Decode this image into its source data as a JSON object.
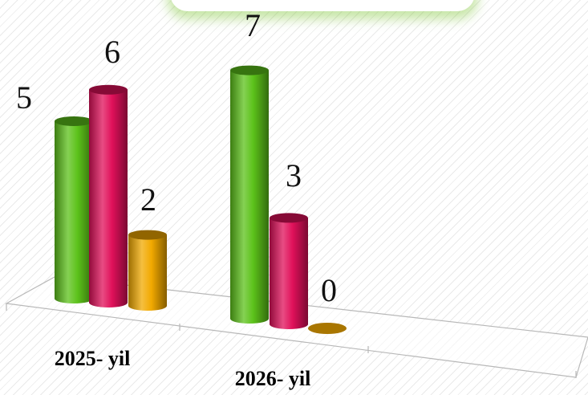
{
  "chart_data": {
    "type": "bar",
    "style": "3d-cylinder",
    "categories": [
      "2025- yil",
      "2026- yil"
    ],
    "series": [
      {
        "values": [
          5,
          7
        ],
        "color": "#5cc21a"
      },
      {
        "values": [
          6,
          3
        ],
        "color": "#e0105a"
      },
      {
        "values": [
          2,
          0
        ],
        "color": "#f2a900"
      }
    ],
    "ylim": [
      0,
      8
    ],
    "grid": false,
    "legend": "none",
    "data_labels": true
  }
}
